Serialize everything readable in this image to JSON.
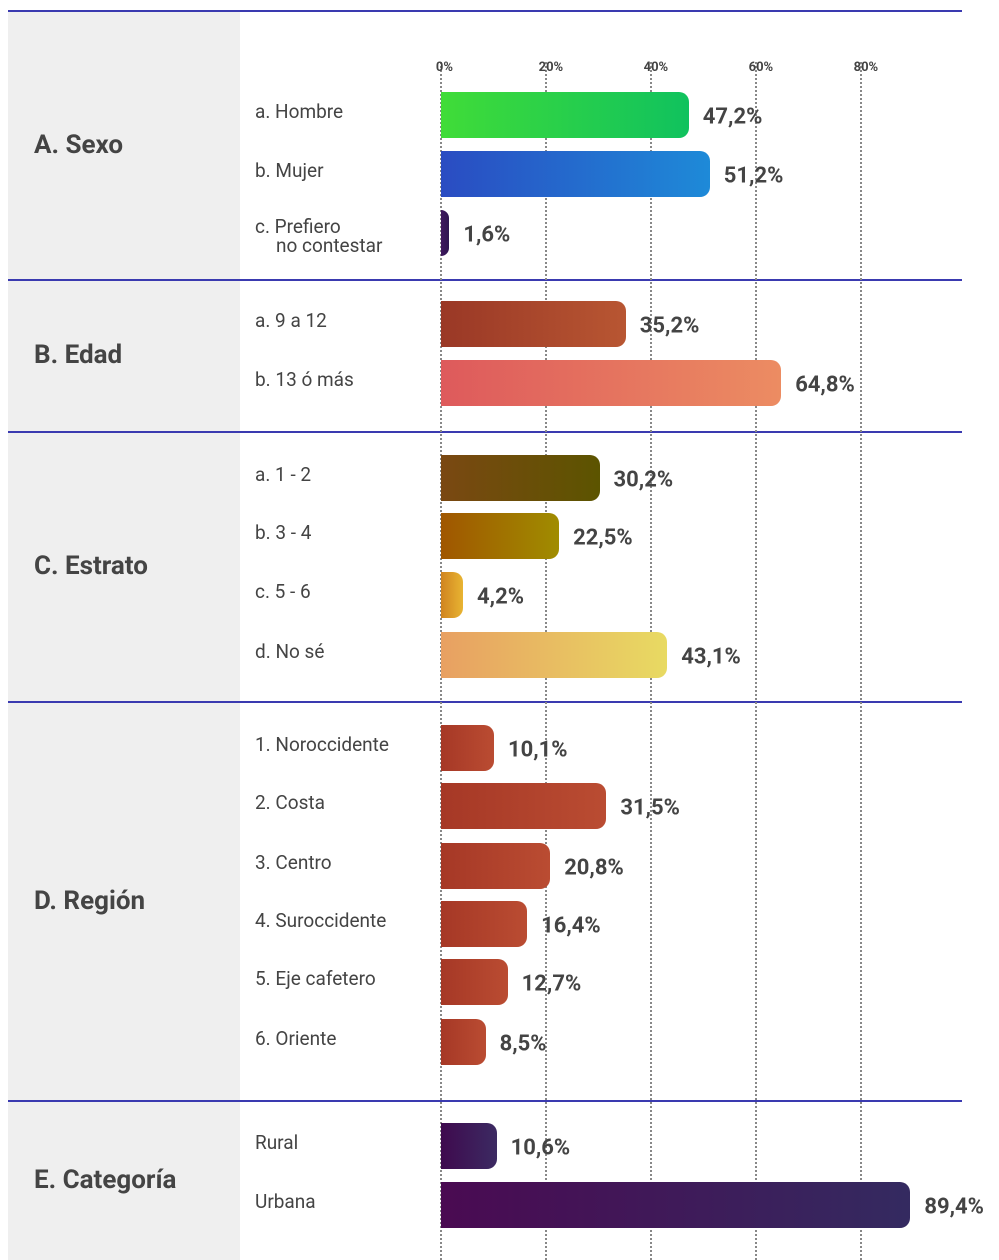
{
  "chart_data": {
    "type": "bar",
    "xticks": [
      {
        "value": 0,
        "label": "0%"
      },
      {
        "value": 20,
        "label": "20%"
      },
      {
        "value": 40,
        "label": "40%"
      },
      {
        "value": 60,
        "label": "60%"
      },
      {
        "value": 80,
        "label": "80%"
      }
    ],
    "xlim": [
      0,
      100
    ],
    "grid": true,
    "groups": [
      {
        "name": "A. Sexo",
        "categories": [
          "a. Hombre",
          "b. Mujer",
          "c. Prefiero\nno contestar"
        ],
        "values": [
          47.2,
          51.2,
          1.6
        ],
        "value_labels": [
          "47,2%",
          "51,2%",
          "1,6%"
        ],
        "colors": [
          [
            "#40dc38",
            "#10c25e"
          ],
          [
            "#2a4cc2",
            "#1e8ad8"
          ],
          [
            "#40185e",
            "#2e1650"
          ]
        ]
      },
      {
        "name": "B. Edad",
        "categories": [
          "a. 9 a 12",
          "b. 13 ó más"
        ],
        "values": [
          35.2,
          64.8
        ],
        "value_labels": [
          "35,2%",
          "64,8%"
        ],
        "colors": [
          [
            "#9a3826",
            "#b85632"
          ],
          [
            "#de5a5c",
            "#ec8c62"
          ]
        ]
      },
      {
        "name": "C. Estrato",
        "categories": [
          "a. 1 - 2",
          "b. 3 - 4",
          "c. 5 - 6",
          "d. No sé"
        ],
        "values": [
          30.2,
          22.5,
          4.2,
          43.1
        ],
        "value_labels": [
          "30,2%",
          "22,5%",
          "4,2%",
          "43,1%"
        ],
        "colors": [
          [
            "#7a4812",
            "#5c5400"
          ],
          [
            "#a05600",
            "#a08c00"
          ],
          [
            "#d08420",
            "#e8b432"
          ],
          [
            "#e8a062",
            "#e8da62"
          ]
        ]
      },
      {
        "name": "D. Región",
        "categories": [
          "1. Noroccidente",
          "2. Costa",
          "3. Centro",
          "4. Suroccidente",
          "5. Eje cafetero",
          "6. Oriente"
        ],
        "values": [
          10.1,
          31.5,
          20.8,
          16.4,
          12.7,
          8.5
        ],
        "value_labels": [
          "10,1%",
          "31,5%",
          "20,8%",
          "16,4%",
          "12,7%",
          "8,5%"
        ],
        "colors": [
          [
            "#a63826",
            "#ba4c32"
          ],
          [
            "#a63826",
            "#ba4c32"
          ],
          [
            "#a63826",
            "#ba4c32"
          ],
          [
            "#a63826",
            "#ba4c32"
          ],
          [
            "#a63826",
            "#ba4c32"
          ],
          [
            "#a63826",
            "#ba4c32"
          ]
        ]
      },
      {
        "name": "E. Categoría",
        "categories": [
          "Rural",
          "Urbana"
        ],
        "values": [
          10.6,
          89.4
        ],
        "value_labels": [
          "10,6%",
          "89,4%"
        ],
        "colors": [
          [
            "#3e0a4e",
            "#3c2a62"
          ],
          [
            "#4a0a52",
            "#342a60"
          ]
        ]
      }
    ]
  }
}
